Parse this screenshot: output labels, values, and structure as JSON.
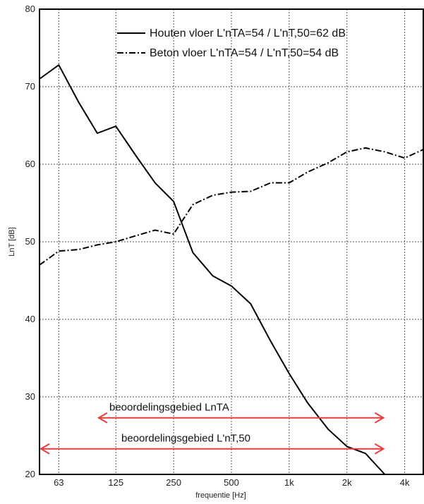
{
  "chart_data": {
    "type": "line",
    "xlabel": "frequentie [Hz]",
    "ylabel": "LnT [dB]",
    "xscale": "log",
    "xlim": [
      50,
      5000
    ],
    "ylim": [
      20,
      80
    ],
    "grid": true,
    "x_ticks": [
      {
        "value": 63,
        "label": "63"
      },
      {
        "value": 125,
        "label": "125"
      },
      {
        "value": 250,
        "label": "250"
      },
      {
        "value": 500,
        "label": "500"
      },
      {
        "value": 1000,
        "label": "1k"
      },
      {
        "value": 2000,
        "label": "2k"
      },
      {
        "value": 4000,
        "label": "4k"
      }
    ],
    "y_ticks": [
      20,
      30,
      40,
      50,
      60,
      70,
      80
    ],
    "legend_position": "top-right",
    "series": [
      {
        "name": "Houten vloer",
        "legend_value": "L'nTA=54 / L'nT,50=62 dB",
        "style": "solid",
        "x": [
          50,
          63,
          80,
          100,
          125,
          160,
          200,
          250,
          315,
          400,
          500,
          630,
          800,
          1000,
          1250,
          1600,
          2000,
          2500,
          3150
        ],
        "values": [
          71.0,
          72.8,
          68.0,
          64.0,
          64.9,
          61.0,
          57.6,
          55.2,
          48.6,
          45.6,
          44.3,
          42.0,
          37.2,
          33.0,
          29.2,
          25.8,
          23.6,
          22.7,
          20.0
        ]
      },
      {
        "name": "Beton vloer",
        "legend_value": "L'nTA=54 / L'nT,50=54 dB",
        "style": "dashdot",
        "x": [
          50,
          63,
          80,
          100,
          125,
          160,
          200,
          250,
          315,
          400,
          500,
          630,
          800,
          1000,
          1250,
          1600,
          2000,
          2500,
          3150,
          4000,
          5000
        ],
        "values": [
          47.0,
          48.8,
          49.0,
          49.6,
          50.0,
          50.8,
          51.5,
          51.0,
          54.8,
          56.0,
          56.4,
          56.5,
          57.6,
          57.6,
          59.0,
          60.2,
          61.6,
          62.1,
          61.6,
          60.8,
          61.9
        ]
      }
    ],
    "annotations": [
      {
        "text": "beoordelingsgebied LnTA",
        "from": 100,
        "to": 3150,
        "y": 27.3,
        "color": "#ea3c3c"
      },
      {
        "text": "beoordelingsgebied L'nT,50",
        "from": 50,
        "to": 3150,
        "y": 23.3,
        "color": "#ea3c3c"
      }
    ]
  }
}
